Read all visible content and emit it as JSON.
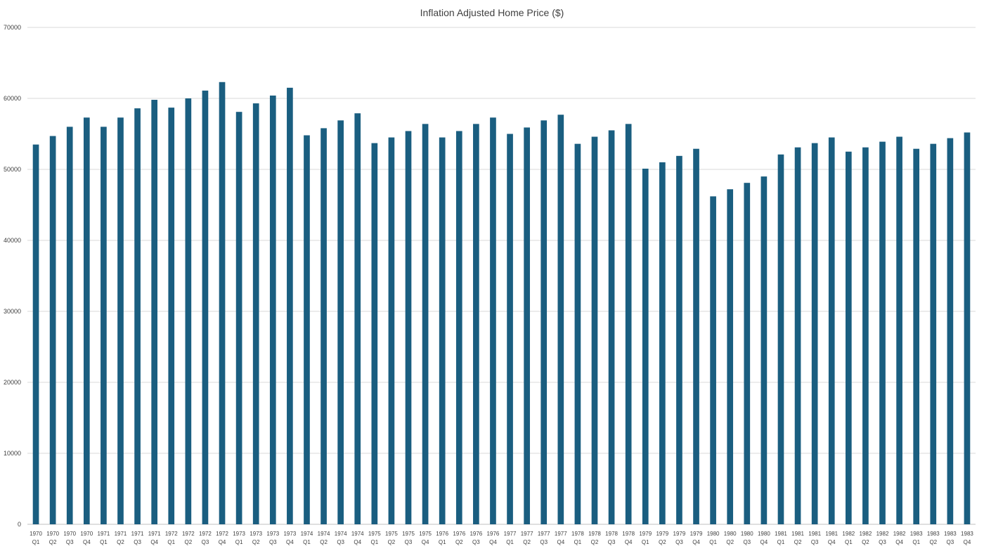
{
  "chart_data": {
    "type": "bar",
    "title": "Inflation Adjusted Home Price ($)",
    "xlabel": "",
    "ylabel": "",
    "ylim": [
      0,
      70000
    ],
    "yticks": [
      0,
      10000,
      20000,
      30000,
      40000,
      50000,
      60000,
      70000
    ],
    "ytick_labels": [
      "0",
      "10000",
      "20000",
      "30000",
      "40000",
      "50000",
      "60000",
      "70000"
    ],
    "grid": true,
    "legend": "none",
    "bar_color": "#1a5e80",
    "categories": [
      [
        "1970",
        "Q1"
      ],
      [
        "1970",
        "Q2"
      ],
      [
        "1970",
        "Q3"
      ],
      [
        "1970",
        "Q4"
      ],
      [
        "1971",
        "Q1"
      ],
      [
        "1971",
        "Q2"
      ],
      [
        "1971",
        "Q3"
      ],
      [
        "1971",
        "Q4"
      ],
      [
        "1972",
        "Q1"
      ],
      [
        "1972",
        "Q2"
      ],
      [
        "1972",
        "Q3"
      ],
      [
        "1972",
        "Q4"
      ],
      [
        "1973",
        "Q1"
      ],
      [
        "1973",
        "Q2"
      ],
      [
        "1973",
        "Q3"
      ],
      [
        "1973",
        "Q4"
      ],
      [
        "1974",
        "Q1"
      ],
      [
        "1974",
        "Q2"
      ],
      [
        "1974",
        "Q3"
      ],
      [
        "1974",
        "Q4"
      ],
      [
        "1975",
        "Q1"
      ],
      [
        "1975",
        "Q2"
      ],
      [
        "1975",
        "Q3"
      ],
      [
        "1975",
        "Q4"
      ],
      [
        "1976",
        "Q1"
      ],
      [
        "1976",
        "Q2"
      ],
      [
        "1976",
        "Q3"
      ],
      [
        "1976",
        "Q4"
      ],
      [
        "1977",
        "Q1"
      ],
      [
        "1977",
        "Q2"
      ],
      [
        "1977",
        "Q3"
      ],
      [
        "1977",
        "Q4"
      ],
      [
        "1978",
        "Q1"
      ],
      [
        "1978",
        "Q2"
      ],
      [
        "1978",
        "Q3"
      ],
      [
        "1978",
        "Q4"
      ],
      [
        "1979",
        "Q1"
      ],
      [
        "1979",
        "Q2"
      ],
      [
        "1979",
        "Q3"
      ],
      [
        "1979",
        "Q4"
      ],
      [
        "1980",
        "Q1"
      ],
      [
        "1980",
        "Q2"
      ],
      [
        "1980",
        "Q3"
      ],
      [
        "1980",
        "Q4"
      ],
      [
        "1981",
        "Q1"
      ],
      [
        "1981",
        "Q2"
      ],
      [
        "1981",
        "Q3"
      ],
      [
        "1981",
        "Q4"
      ],
      [
        "1982",
        "Q1"
      ],
      [
        "1982",
        "Q2"
      ],
      [
        "1982",
        "Q3"
      ],
      [
        "1982",
        "Q4"
      ],
      [
        "1983",
        "Q1"
      ],
      [
        "1983",
        "Q2"
      ],
      [
        "1983",
        "Q3"
      ],
      [
        "1983",
        "Q4"
      ]
    ],
    "values": [
      53500,
      54700,
      56000,
      57300,
      56000,
      57300,
      58600,
      59800,
      58700,
      60000,
      61100,
      62300,
      58100,
      59300,
      60400,
      61500,
      54800,
      55800,
      56900,
      57900,
      53700,
      54500,
      55400,
      56400,
      54500,
      55400,
      56400,
      57300,
      55000,
      55900,
      56900,
      57700,
      53600,
      54600,
      55500,
      56400,
      50100,
      51000,
      51900,
      52900,
      46200,
      47200,
      48100,
      49000,
      52100,
      53100,
      53700,
      54500,
      52500,
      53100,
      53900,
      54600,
      52900,
      53600,
      54400,
      55200
    ]
  }
}
